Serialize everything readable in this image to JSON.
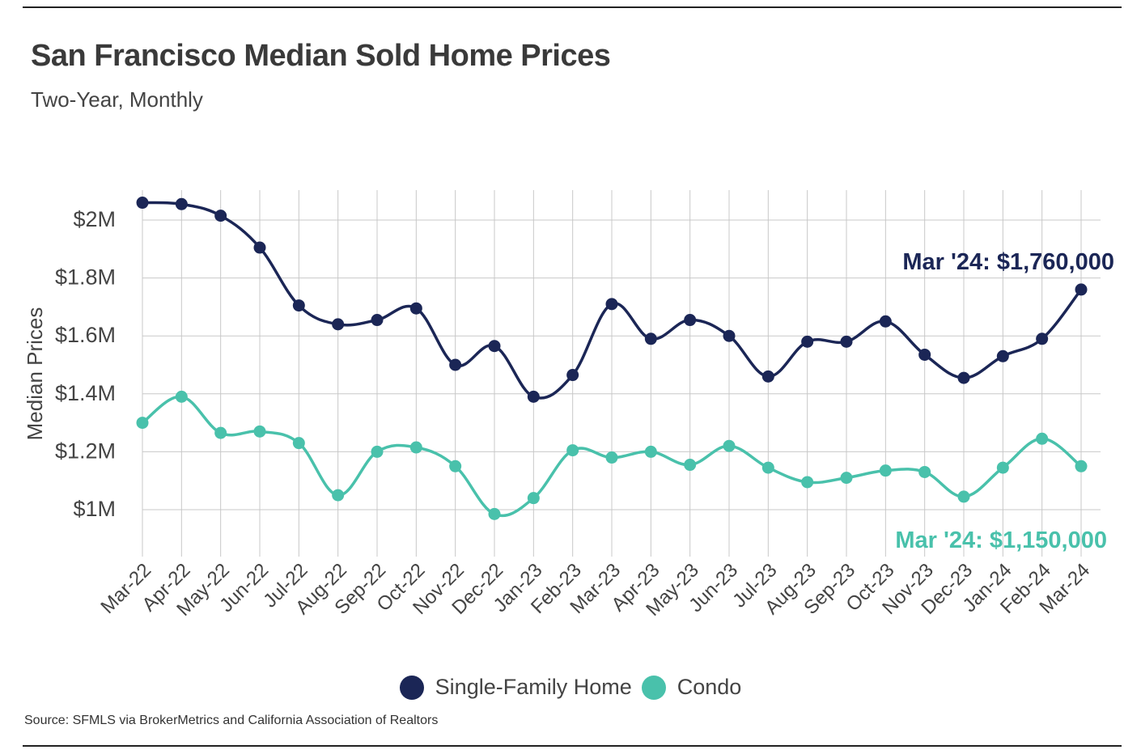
{
  "title": "San Francisco Median Sold Home Prices",
  "subtitle": "Two-Year, Monthly",
  "source": "Source:  SFMLS via BrokerMetrics and California Association of Realtors",
  "colors": {
    "sfh": "#1b2656",
    "condo": "#49c1ab",
    "grid": "#c8c8c8",
    "text": "#444444"
  },
  "chart_data": {
    "type": "line",
    "categories": [
      "Mar-22",
      "Apr-22",
      "May-22",
      "Jun-22",
      "Jul-22",
      "Aug-22",
      "Sep-22",
      "Oct-22",
      "Nov-22",
      "Dec-22",
      "Jan-23",
      "Feb-23",
      "Mar-23",
      "Apr-23",
      "May-23",
      "Jun-23",
      "Jul-23",
      "Aug-23",
      "Sep-23",
      "Oct-23",
      "Nov-23",
      "Dec-23",
      "Jan-24",
      "Feb-24",
      "Mar-24"
    ],
    "series": [
      {
        "name": "Single-Family Home",
        "color": "#1b2656",
        "values": [
          2060000,
          2055000,
          2015000,
          1905000,
          1705000,
          1640000,
          1655000,
          1695000,
          1500000,
          1565000,
          1390000,
          1465000,
          1710000,
          1590000,
          1655000,
          1600000,
          1460000,
          1580000,
          1580000,
          1650000,
          1535000,
          1455000,
          1530000,
          1590000,
          1760000
        ],
        "annotation": "Mar '24: $1,760,000"
      },
      {
        "name": "Condo",
        "color": "#49c1ab",
        "values": [
          1300000,
          1390000,
          1265000,
          1270000,
          1230000,
          1050000,
          1200000,
          1215000,
          1150000,
          985000,
          1040000,
          1205000,
          1180000,
          1200000,
          1155000,
          1220000,
          1145000,
          1095000,
          1110000,
          1135000,
          1130000,
          1045000,
          1145000,
          1245000,
          1150000
        ],
        "annotation": "Mar '24: $1,150,000"
      }
    ],
    "ylabel": "Median Prices",
    "yticks": [
      1000000,
      1200000,
      1400000,
      1600000,
      1800000,
      2000000
    ],
    "ytick_labels": [
      "$1M",
      "$1.2M",
      "$1.4M",
      "$1.6M",
      "$1.8M",
      "$2M"
    ],
    "ylim": [
      850000,
      2100000
    ],
    "grid": true,
    "legend_position": "bottom-center"
  }
}
